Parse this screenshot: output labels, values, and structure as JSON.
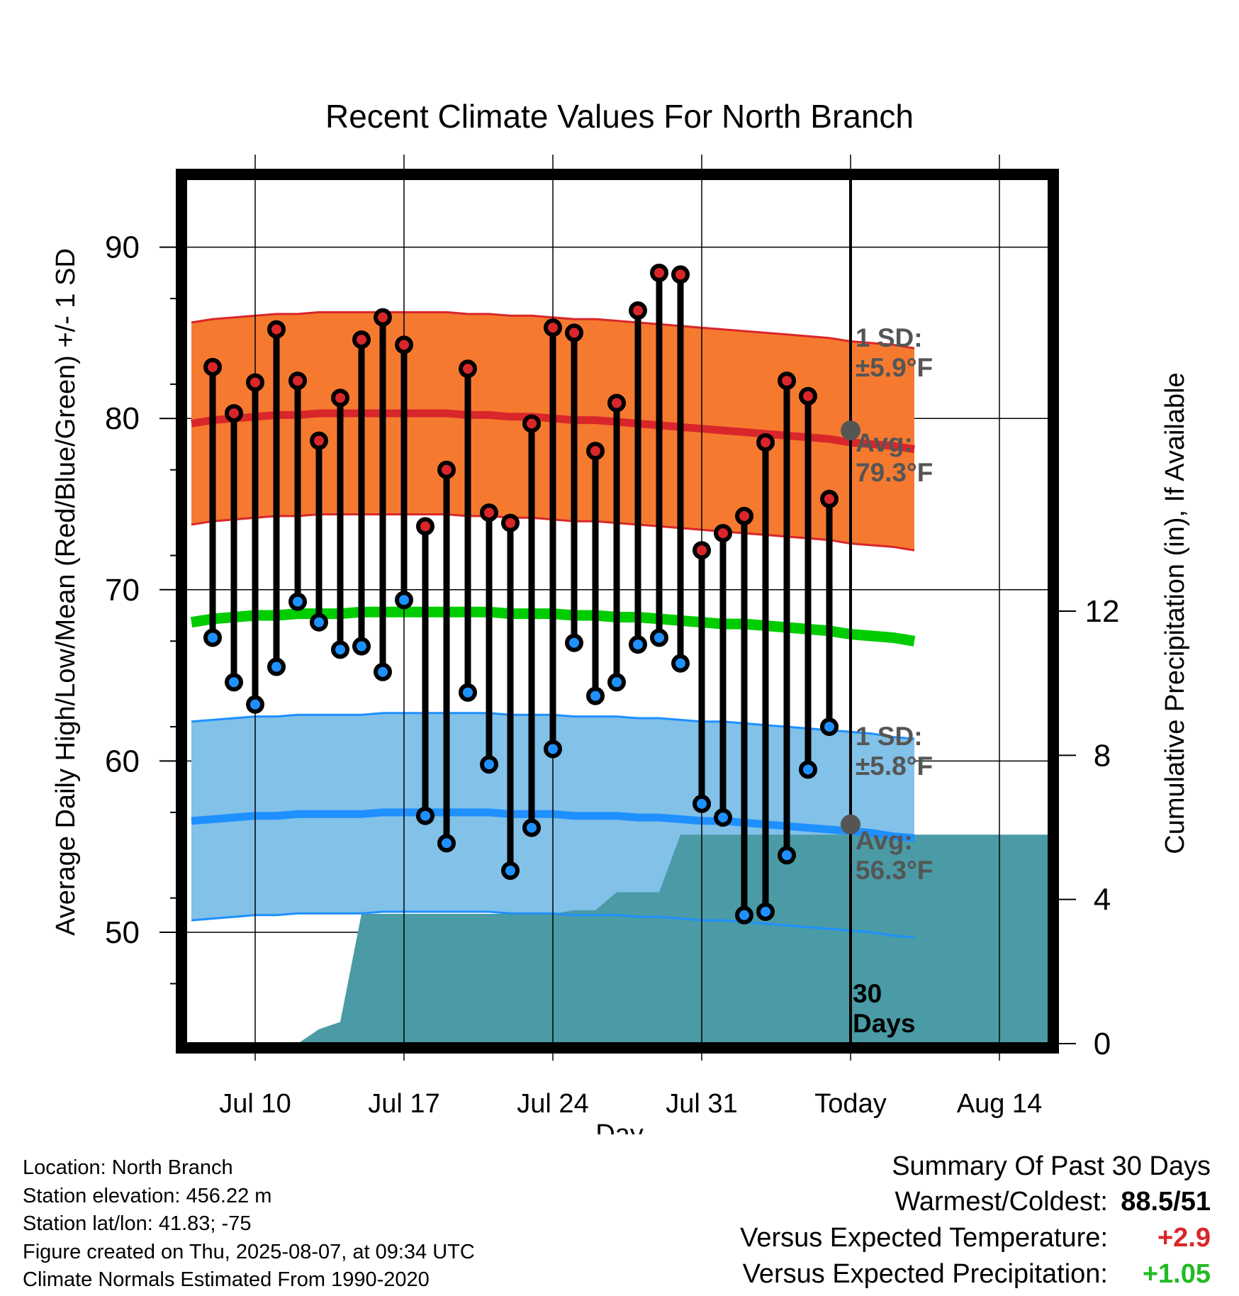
{
  "chart_data": {
    "type": "line",
    "title": "Recent Climate Values For North Branch",
    "xlabel": "Day",
    "ylabel": "Average Daily High/Low/Mean (Red/Blue/Green) +/- 1 SD",
    "ylabel_right": "Cumulative Precipitation (in), If Available",
    "x_ticks": [
      "Jul 10",
      "Jul 17",
      "Jul 24",
      "Jul 31",
      "Today",
      "Aug 14"
    ],
    "ylim": [
      43.5,
      94
    ],
    "y_ticks": [
      50,
      60,
      70,
      80,
      90
    ],
    "y2lim": [
      0,
      24
    ],
    "y2_ticks": [
      0,
      4,
      8,
      12
    ],
    "grid": true,
    "colors": {
      "high": "#d9262a",
      "low": "#1e90ff",
      "mean": "#00cc00",
      "high_band": "#f57a30",
      "low_band": "#82c1e8",
      "precip": "#4a9ba5"
    },
    "days": [
      "2025-07-08",
      "2025-07-09",
      "2025-07-10",
      "2025-07-11",
      "2025-07-12",
      "2025-07-13",
      "2025-07-14",
      "2025-07-15",
      "2025-07-16",
      "2025-07-17",
      "2025-07-18",
      "2025-07-19",
      "2025-07-20",
      "2025-07-21",
      "2025-07-22",
      "2025-07-23",
      "2025-07-24",
      "2025-07-25",
      "2025-07-26",
      "2025-07-27",
      "2025-07-28",
      "2025-07-29",
      "2025-07-30",
      "2025-07-31",
      "2025-08-01",
      "2025-08-02",
      "2025-08-03",
      "2025-08-04",
      "2025-08-05",
      "2025-08-06"
    ],
    "highs": [
      83.0,
      80.3,
      82.1,
      85.2,
      82.2,
      78.7,
      81.2,
      84.6,
      85.9,
      84.3,
      73.7,
      77.0,
      82.9,
      74.5,
      73.9,
      79.7,
      85.3,
      85.0,
      78.1,
      80.9,
      86.3,
      88.5,
      88.4,
      72.3,
      73.3,
      74.3,
      78.6,
      82.2,
      81.3,
      75.3
    ],
    "lows": [
      67.2,
      64.6,
      63.3,
      65.5,
      69.3,
      68.1,
      66.5,
      66.7,
      65.2,
      69.4,
      56.8,
      55.2,
      64.0,
      59.8,
      53.6,
      56.1,
      60.7,
      66.9,
      63.8,
      64.6,
      66.8,
      67.2,
      65.7,
      57.5,
      56.7,
      51.0,
      51.2,
      54.5,
      59.5,
      62.0
    ],
    "normal_high": [
      79.7,
      79.9,
      80.0,
      80.1,
      80.2,
      80.2,
      80.3,
      80.3,
      80.3,
      80.3,
      80.3,
      80.3,
      80.3,
      80.2,
      80.2,
      80.1,
      80.1,
      80.0,
      79.9,
      79.9,
      79.8,
      79.7,
      79.6,
      79.5,
      79.4,
      79.3,
      79.2,
      79.1,
      79.0,
      78.9,
      78.8,
      78.6,
      78.5,
      78.4,
      78.2
    ],
    "high_sd": 5.9,
    "normal_low": [
      56.5,
      56.6,
      56.7,
      56.8,
      56.8,
      56.9,
      56.9,
      56.9,
      56.9,
      57.0,
      57.0,
      57.0,
      57.0,
      57.0,
      57.0,
      56.9,
      56.9,
      56.9,
      56.8,
      56.8,
      56.8,
      56.7,
      56.7,
      56.6,
      56.5,
      56.5,
      56.4,
      56.3,
      56.2,
      56.1,
      56.0,
      55.9,
      55.8,
      55.6,
      55.5
    ],
    "low_sd": 5.8,
    "normal_mean": [
      68.1,
      68.3,
      68.4,
      68.5,
      68.5,
      68.6,
      68.6,
      68.6,
      68.7,
      68.7,
      68.7,
      68.7,
      68.7,
      68.7,
      68.7,
      68.6,
      68.6,
      68.6,
      68.5,
      68.5,
      68.4,
      68.4,
      68.3,
      68.2,
      68.1,
      68.0,
      68.0,
      67.9,
      67.8,
      67.7,
      67.6,
      67.4,
      67.3,
      67.2,
      67.0
    ],
    "precip_cumulative": [
      0.0,
      0.0,
      0.0,
      0.0,
      0.0,
      0.4,
      0.6,
      3.6,
      3.6,
      3.6,
      3.6,
      3.6,
      3.6,
      3.6,
      3.6,
      3.6,
      3.6,
      3.7,
      3.7,
      4.2,
      4.2,
      4.2,
      5.8,
      5.8,
      5.8,
      5.8,
      5.8,
      5.8,
      5.8,
      5.8
    ],
    "annotations": {
      "high_sd": [
        "1 SD:",
        "±5.9°F"
      ],
      "high_avg": [
        "Avg:",
        "79.3°F"
      ],
      "low_sd": [
        "1 SD:",
        "±5.8°F"
      ],
      "low_avg": [
        "Avg:",
        "56.3°F"
      ],
      "window": [
        "30",
        "Days"
      ]
    },
    "today_marks": {
      "high_avg": 79.3,
      "low_avg": 56.3
    }
  },
  "footer": {
    "location": "Location: North Branch",
    "elevation": "Station elevation: 456.22 m",
    "latlon": "Station lat/lon: 41.83; -75",
    "created": "Figure created on Thu, 2025-08-07, at 09:34 UTC",
    "normals": "Climate Normals Estimated From 1990-2020"
  },
  "summary": {
    "title": "Summary Of Past 30 Days",
    "warmest_coldest_label": "Warmest/Coldest:",
    "warmest_coldest_value": "88.5/51",
    "temp_label": "Versus Expected Temperature:",
    "temp_value": "+2.9",
    "temp_color": "#d9262a",
    "precip_label": "Versus Expected Precipitation:",
    "precip_value": "+1.05",
    "precip_color": "#22bb22"
  }
}
